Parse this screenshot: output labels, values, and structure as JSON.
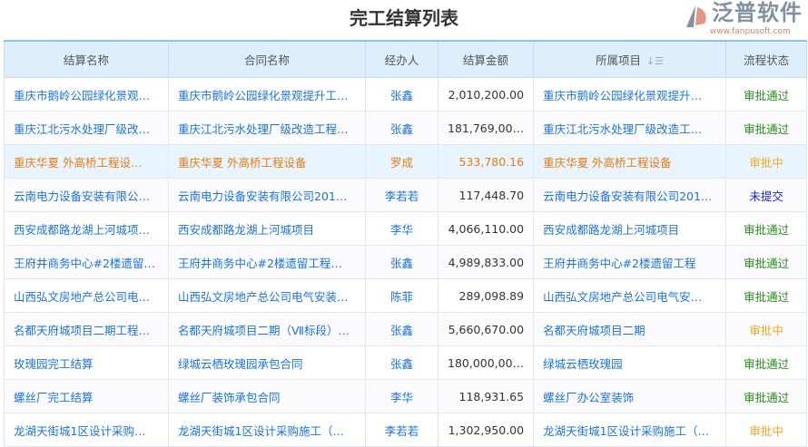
{
  "title": "完工结算列表",
  "columns": [
    "结算名称",
    "合同名称",
    "经办人",
    "结算金额",
    "所属项目",
    "流程状态"
  ],
  "sort_icon": "sort-icon",
  "status_colors": {
    "审批通过": "#2a8a1e",
    "审批中": "#f5a623",
    "未提交": "#1a1ae0"
  },
  "rows": [
    {
      "name": "重庆市鹅岭公园绿化景观…",
      "contract": "重庆市鹅岭公园绿化景观提升工…",
      "handler": "张鑫",
      "amount": "2,010,200.00",
      "project": "重庆市鹅岭公园绿化景观提升…",
      "status": "审批通过"
    },
    {
      "name": "重庆江北污水处理厂级改…",
      "contract": "重庆江北污水处理厂级改造工程…",
      "handler": "张鑫",
      "amount": "181,769,00…",
      "project": "重庆江北污水处理厂级改造工…",
      "status": "审批通过"
    },
    {
      "name": "重庆华夏 外高桥工程设…",
      "contract": "重庆华夏 外高桥工程设备",
      "handler": "罗成",
      "amount": "533,780.16",
      "project": "重庆华夏 外高桥工程设备",
      "status": "审批中"
    },
    {
      "name": "云南电力设备安装有限公…",
      "contract": "云南电力设备安装有限公司201…",
      "handler": "李若若",
      "amount": "117,448.70",
      "project": "云南电力设备安装有限公司201…",
      "status": "未提交"
    },
    {
      "name": "西安成都路龙湖上河城项…",
      "contract": "西安成都路龙湖上河城项目",
      "handler": "李华",
      "amount": "4,066,110.00",
      "project": "西安成都路龙湖上河城项目",
      "status": "审批通过"
    },
    {
      "name": "王府井商务中心#2楼遗留…",
      "contract": "王府井商务中心#2楼遗留工程…",
      "handler": "张鑫",
      "amount": "4,989,833.00",
      "project": "王府井商务中心#2楼遗留工程",
      "status": "审批通过"
    },
    {
      "name": "山西弘文房地产总公司电…",
      "contract": "山西弘文房地产总公司电气安装…",
      "handler": "陈菲",
      "amount": "289,098.89",
      "project": "山西弘文房地产总公司电气安…",
      "status": "审批通过"
    },
    {
      "name": "名都天府城项目二期工程…",
      "contract": "名都天府城项目二期（Ⅶ标段）…",
      "handler": "张鑫",
      "amount": "5,660,670.00",
      "project": "名都天府城项目二期",
      "status": "审批中"
    },
    {
      "name": "玫瑰园完工结算",
      "contract": "绿城云栖玫瑰园承包合同",
      "handler": "张鑫",
      "amount": "180,000,00…",
      "project": "绿城云栖玫瑰园",
      "status": "审批通过"
    },
    {
      "name": "螺丝厂完工结算",
      "contract": "螺丝厂装饰承包合同",
      "handler": "李华",
      "amount": "118,931.65",
      "project": "螺丝厂办公室装饰",
      "status": "审批通过"
    },
    {
      "name": "龙湖天街城1区设计采购…",
      "contract": "龙湖天街城1区设计采购施工（…",
      "handler": "李若若",
      "amount": "1,302,950.00",
      "project": "龙湖天街城1区设计采购施工（…",
      "status": "审批中"
    }
  ],
  "highlighted_row": 2,
  "watermark": {
    "text": "泛普软件",
    "url": "www.fanpusoft.com"
  }
}
